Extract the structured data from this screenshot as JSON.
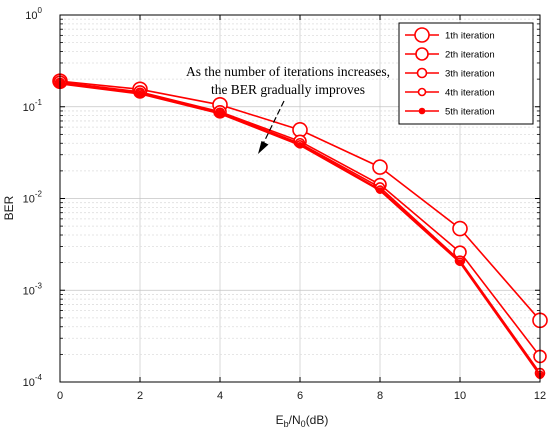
{
  "chart_data": {
    "type": "line",
    "scale_y": "log",
    "xlabel_parts": {
      "E": "E",
      "b": "b",
      "slash_N": "/N",
      "zero": "0",
      "unit": "(dB)"
    },
    "ylabel": "BER",
    "xlim": [
      0,
      12
    ],
    "ylim": [
      0.0001,
      1
    ],
    "x_ticks": [
      "0",
      "2",
      "4",
      "6",
      "8",
      "10",
      "12"
    ],
    "y_ticks": [
      {
        "base": "10",
        "exp": "0"
      },
      {
        "base": "10",
        "exp": "-1"
      },
      {
        "base": "10",
        "exp": "-2"
      },
      {
        "base": "10",
        "exp": "-3"
      },
      {
        "base": "10",
        "exp": "-4"
      }
    ],
    "grid": true,
    "legend_position": "top-right",
    "line_color": "#ff0000",
    "x": [
      0,
      2,
      4,
      6,
      8,
      10,
      12
    ],
    "series": [
      {
        "name": "1th iteration",
        "values": [
          0.19,
          0.155,
          0.105,
          0.056,
          0.022,
          0.0047,
          0.00047
        ]
      },
      {
        "name": "2th iteration",
        "values": [
          0.185,
          0.145,
          0.088,
          0.042,
          0.0142,
          0.0026,
          0.00019
        ]
      },
      {
        "name": "3th iteration",
        "values": [
          0.182,
          0.142,
          0.086,
          0.04,
          0.0132,
          0.0021,
          0.000125
        ]
      },
      {
        "name": "4th iteration",
        "values": [
          0.18,
          0.14,
          0.085,
          0.039,
          0.0125,
          0.00205,
          0.00012
        ]
      },
      {
        "name": "5th iteration",
        "values": [
          0.178,
          0.138,
          0.084,
          0.038,
          0.0122,
          0.002,
          0.000118
        ]
      }
    ],
    "annotation": {
      "line1": "As the number of iterations increases,",
      "line2": "the BER gradually improves"
    }
  }
}
